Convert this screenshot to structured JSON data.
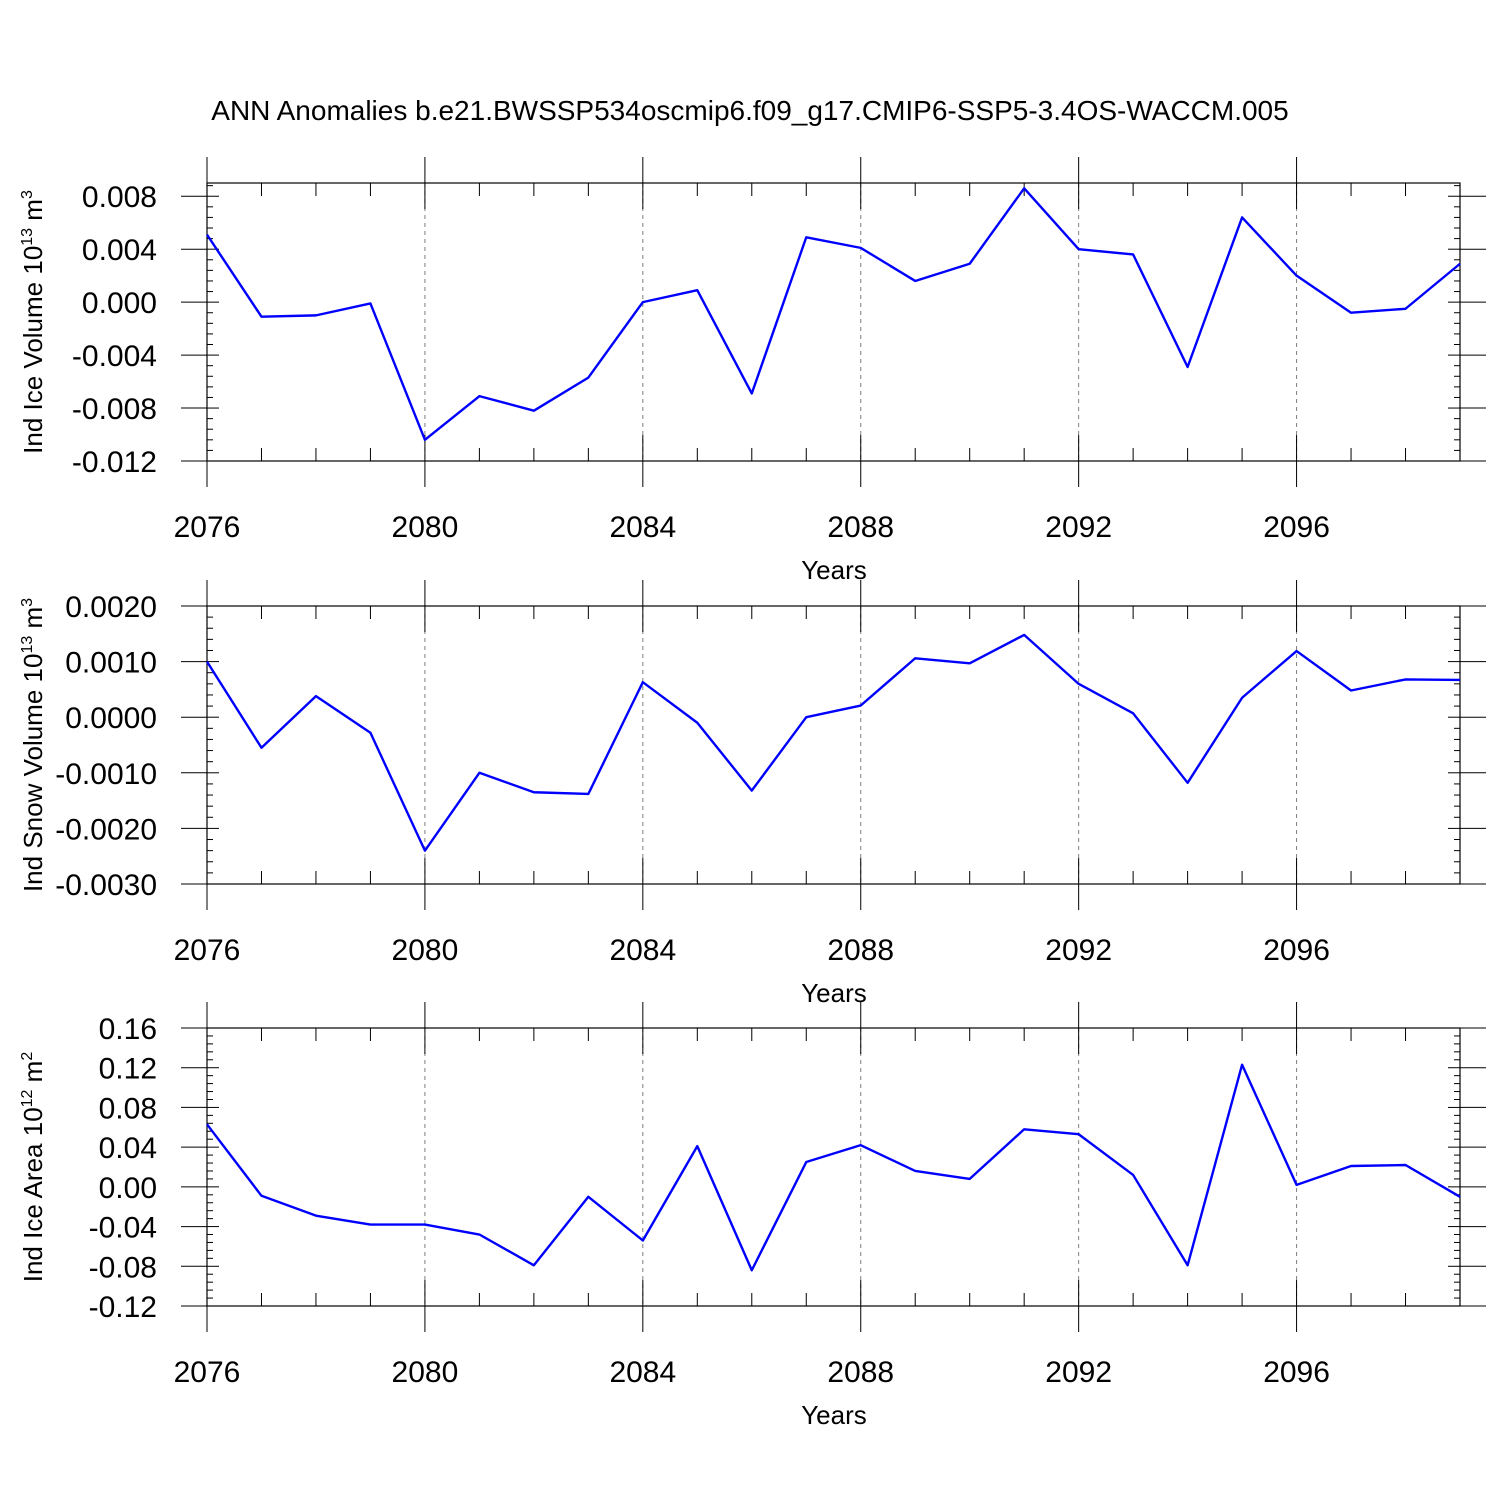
{
  "title": "ANN Anomalies b.e21.BWSSP534oscmip6.f09_g17.CMIP6-SSP5-3.4OS-WACCM.005",
  "line_color": "#0000ff",
  "chart_data": [
    {
      "type": "line",
      "ylabel_main": "Ind Ice Volume 10",
      "ylabel_exp1": "13",
      "ylabel_unit": " m",
      "ylabel_exp2": "3",
      "xlabel": "Years",
      "x_ticks": [
        "2076",
        "2080",
        "2084",
        "2088",
        "2092",
        "2096"
      ],
      "y_ticks": [
        "0.008",
        "0.004",
        "0.000",
        "-0.004",
        "-0.008",
        "-0.012"
      ],
      "y_tick_values": [
        0.008,
        0.004,
        0.0,
        -0.004,
        -0.008,
        -0.012
      ],
      "xlim": [
        2076,
        2099
      ],
      "ylim": [
        -0.012,
        0.009
      ],
      "x": [
        2076,
        2077,
        2078,
        2079,
        2080,
        2081,
        2082,
        2083,
        2084,
        2085,
        2086,
        2087,
        2088,
        2089,
        2090,
        2091,
        2092,
        2093,
        2094,
        2095,
        2096,
        2097,
        2098,
        2099
      ],
      "values": [
        0.0051,
        -0.0011,
        -0.001,
        -0.0001,
        -0.0104,
        -0.0071,
        -0.0082,
        -0.0057,
        0.0,
        0.0009,
        -0.0069,
        0.0049,
        0.0041,
        0.0016,
        0.0029,
        0.0086,
        0.004,
        0.0036,
        -0.0049,
        0.0064,
        0.002,
        -0.0008,
        -0.0005,
        0.0029
      ]
    },
    {
      "type": "line",
      "ylabel_main": "Ind Snow Volume 10",
      "ylabel_exp1": "13",
      "ylabel_unit": " m",
      "ylabel_exp2": "3",
      "xlabel": "Years",
      "x_ticks": [
        "2076",
        "2080",
        "2084",
        "2088",
        "2092",
        "2096"
      ],
      "y_ticks": [
        "0.0020",
        "0.0010",
        "0.0000",
        "-0.0010",
        "-0.0020",
        "-0.0030"
      ],
      "y_tick_values": [
        0.002,
        0.001,
        0.0,
        -0.001,
        -0.002,
        -0.003
      ],
      "xlim": [
        2076,
        2099
      ],
      "ylim": [
        -0.003,
        0.002
      ],
      "x": [
        2076,
        2077,
        2078,
        2079,
        2080,
        2081,
        2082,
        2083,
        2084,
        2085,
        2086,
        2087,
        2088,
        2089,
        2090,
        2091,
        2092,
        2093,
        2094,
        2095,
        2096,
        2097,
        2098,
        2099
      ],
      "values": [
        0.001,
        -0.00055,
        0.00038,
        -0.00028,
        -0.0024,
        -0.001,
        -0.00135,
        -0.00138,
        0.00063,
        -0.0001,
        -0.00132,
        0.0,
        0.00021,
        0.00106,
        0.00097,
        0.00148,
        0.0006,
        7e-05,
        -0.00118,
        0.00035,
        0.00119,
        0.00048,
        0.00068,
        0.00067
      ]
    },
    {
      "type": "line",
      "ylabel_main": "Ind Ice Area 10",
      "ylabel_exp1": "12",
      "ylabel_unit": " m",
      "ylabel_exp2": "2",
      "xlabel": "Years",
      "x_ticks": [
        "2076",
        "2080",
        "2084",
        "2088",
        "2092",
        "2096"
      ],
      "y_ticks": [
        "0.16",
        "0.12",
        "0.08",
        "0.04",
        "0.00",
        "-0.04",
        "-0.08",
        "-0.12"
      ],
      "y_tick_values": [
        0.16,
        0.12,
        0.08,
        0.04,
        0.0,
        -0.04,
        -0.08,
        -0.12
      ],
      "xlim": [
        2076,
        2099
      ],
      "ylim": [
        -0.12,
        0.16
      ],
      "x": [
        2076,
        2077,
        2078,
        2079,
        2080,
        2081,
        2082,
        2083,
        2084,
        2085,
        2086,
        2087,
        2088,
        2089,
        2090,
        2091,
        2092,
        2093,
        2094,
        2095,
        2096,
        2097,
        2098,
        2099
      ],
      "values": [
        0.063,
        -0.009,
        -0.029,
        -0.038,
        -0.038,
        -0.048,
        -0.079,
        -0.01,
        -0.054,
        0.041,
        -0.084,
        0.025,
        0.042,
        0.016,
        0.008,
        0.058,
        0.053,
        0.012,
        -0.079,
        0.123,
        0.002,
        0.021,
        0.022,
        -0.01
      ]
    }
  ]
}
